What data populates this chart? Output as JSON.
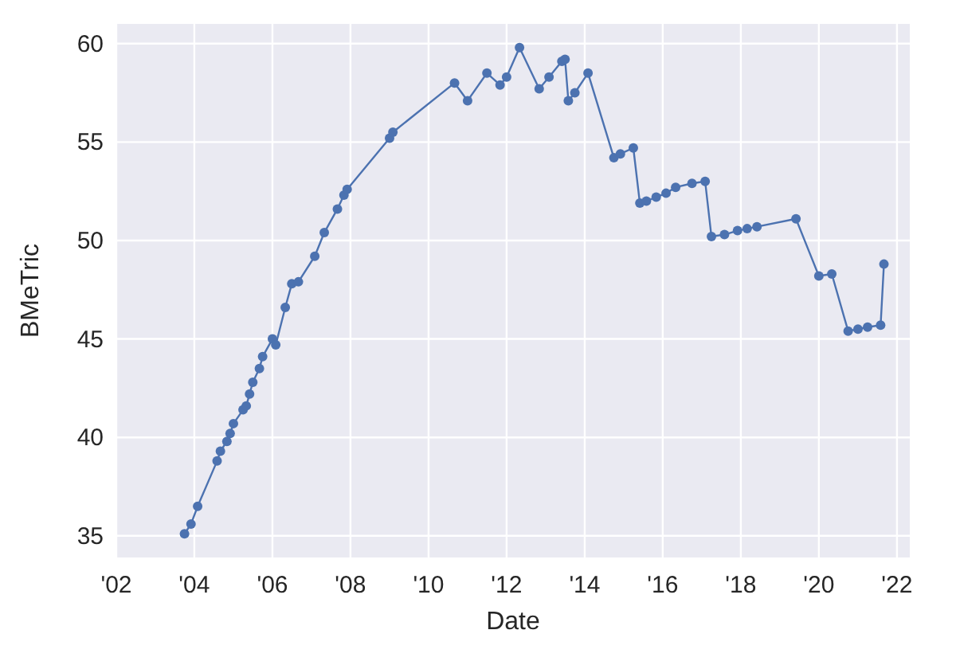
{
  "chart_data": {
    "type": "line",
    "xlabel": "Date",
    "ylabel": "BMeTric",
    "marker": "circle",
    "line_style": "solid",
    "grid": true,
    "xlim": [
      "2002-01-01",
      "2022-05-01"
    ],
    "xticks": [
      {
        "value": "2002",
        "label": "'02"
      },
      {
        "value": "2004",
        "label": "'04"
      },
      {
        "value": "2006",
        "label": "'06"
      },
      {
        "value": "2008",
        "label": "'08"
      },
      {
        "value": "2010",
        "label": "'10"
      },
      {
        "value": "2012",
        "label": "'12"
      },
      {
        "value": "2014",
        "label": "'14"
      },
      {
        "value": "2016",
        "label": "'16"
      },
      {
        "value": "2018",
        "label": "'18"
      },
      {
        "value": "2020",
        "label": "'20"
      },
      {
        "value": "2022",
        "label": "'22"
      }
    ],
    "ylim": [
      33.9,
      61
    ],
    "yticks": [
      35,
      40,
      45,
      50,
      55,
      60
    ],
    "x": [
      "2003-10",
      "2003-12",
      "2004-02",
      "2004-08",
      "2004-09",
      "2004-11",
      "2004-12",
      "2005-01",
      "2005-04",
      "2005-05",
      "2005-06",
      "2005-07",
      "2005-09",
      "2005-10",
      "2006-01",
      "2006-02",
      "2006-05",
      "2006-07",
      "2006-09",
      "2007-02",
      "2007-05",
      "2007-09",
      "2007-11",
      "2007-12",
      "2009-01",
      "2009-02",
      "2010-09",
      "2011-01",
      "2011-07",
      "2011-11",
      "2012-01",
      "2012-05",
      "2012-11",
      "2013-02",
      "2013-06",
      "2013-07",
      "2013-08",
      "2013-10",
      "2014-02",
      "2014-10",
      "2014-12",
      "2015-04",
      "2015-06",
      "2015-08",
      "2015-11",
      "2016-02",
      "2016-05",
      "2016-10",
      "2017-02",
      "2017-04",
      "2017-08",
      "2017-12",
      "2018-03",
      "2018-06",
      "2019-06",
      "2020-01",
      "2020-05",
      "2020-10",
      "2021-01",
      "2021-04",
      "2021-08",
      "2021-09"
    ],
    "series": [
      {
        "color": "#4c72b0",
        "values": [
          35.1,
          35.6,
          36.5,
          38.8,
          39.3,
          39.8,
          40.2,
          40.7,
          41.4,
          41.6,
          42.2,
          42.8,
          43.5,
          44.1,
          45.0,
          44.7,
          46.6,
          47.8,
          47.9,
          49.2,
          50.4,
          51.6,
          52.3,
          52.6,
          55.2,
          55.5,
          58.0,
          57.1,
          58.5,
          57.9,
          58.3,
          59.8,
          57.7,
          58.3,
          59.1,
          59.2,
          57.1,
          57.5,
          58.5,
          54.2,
          54.4,
          54.7,
          51.9,
          52.0,
          52.2,
          52.4,
          52.7,
          52.9,
          53.0,
          50.2,
          50.3,
          50.5,
          50.6,
          50.7,
          51.1,
          48.2,
          48.3,
          45.4,
          45.5,
          45.6,
          45.7,
          48.8
        ]
      }
    ]
  }
}
